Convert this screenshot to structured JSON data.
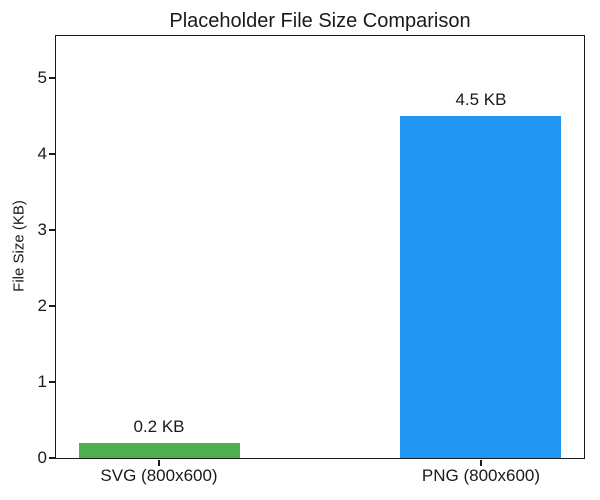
{
  "figure": {
    "background": "#ffffff"
  },
  "chart_data": {
    "type": "bar",
    "title": "Placeholder File Size Comparison",
    "categories": [
      "SVG (800x600)",
      "PNG (800x600)"
    ],
    "values": [
      0.2,
      4.5
    ],
    "bar_labels": [
      "0.2 KB",
      "4.5 KB"
    ],
    "bar_colors": [
      "#4caf50",
      "#2196f3"
    ],
    "xlabel": "",
    "ylabel": "File Size (KB)",
    "ylim": [
      0,
      5.55
    ],
    "yticks": [
      0,
      1,
      2,
      3,
      4,
      5
    ],
    "xlim": [
      -0.32,
      1.32
    ],
    "bar_positions": [
      0,
      1
    ],
    "bar_width": 0.5,
    "grid": false,
    "legend": "none",
    "axis_color": "#1a1a1a",
    "text_color": "#1a1a1a"
  }
}
